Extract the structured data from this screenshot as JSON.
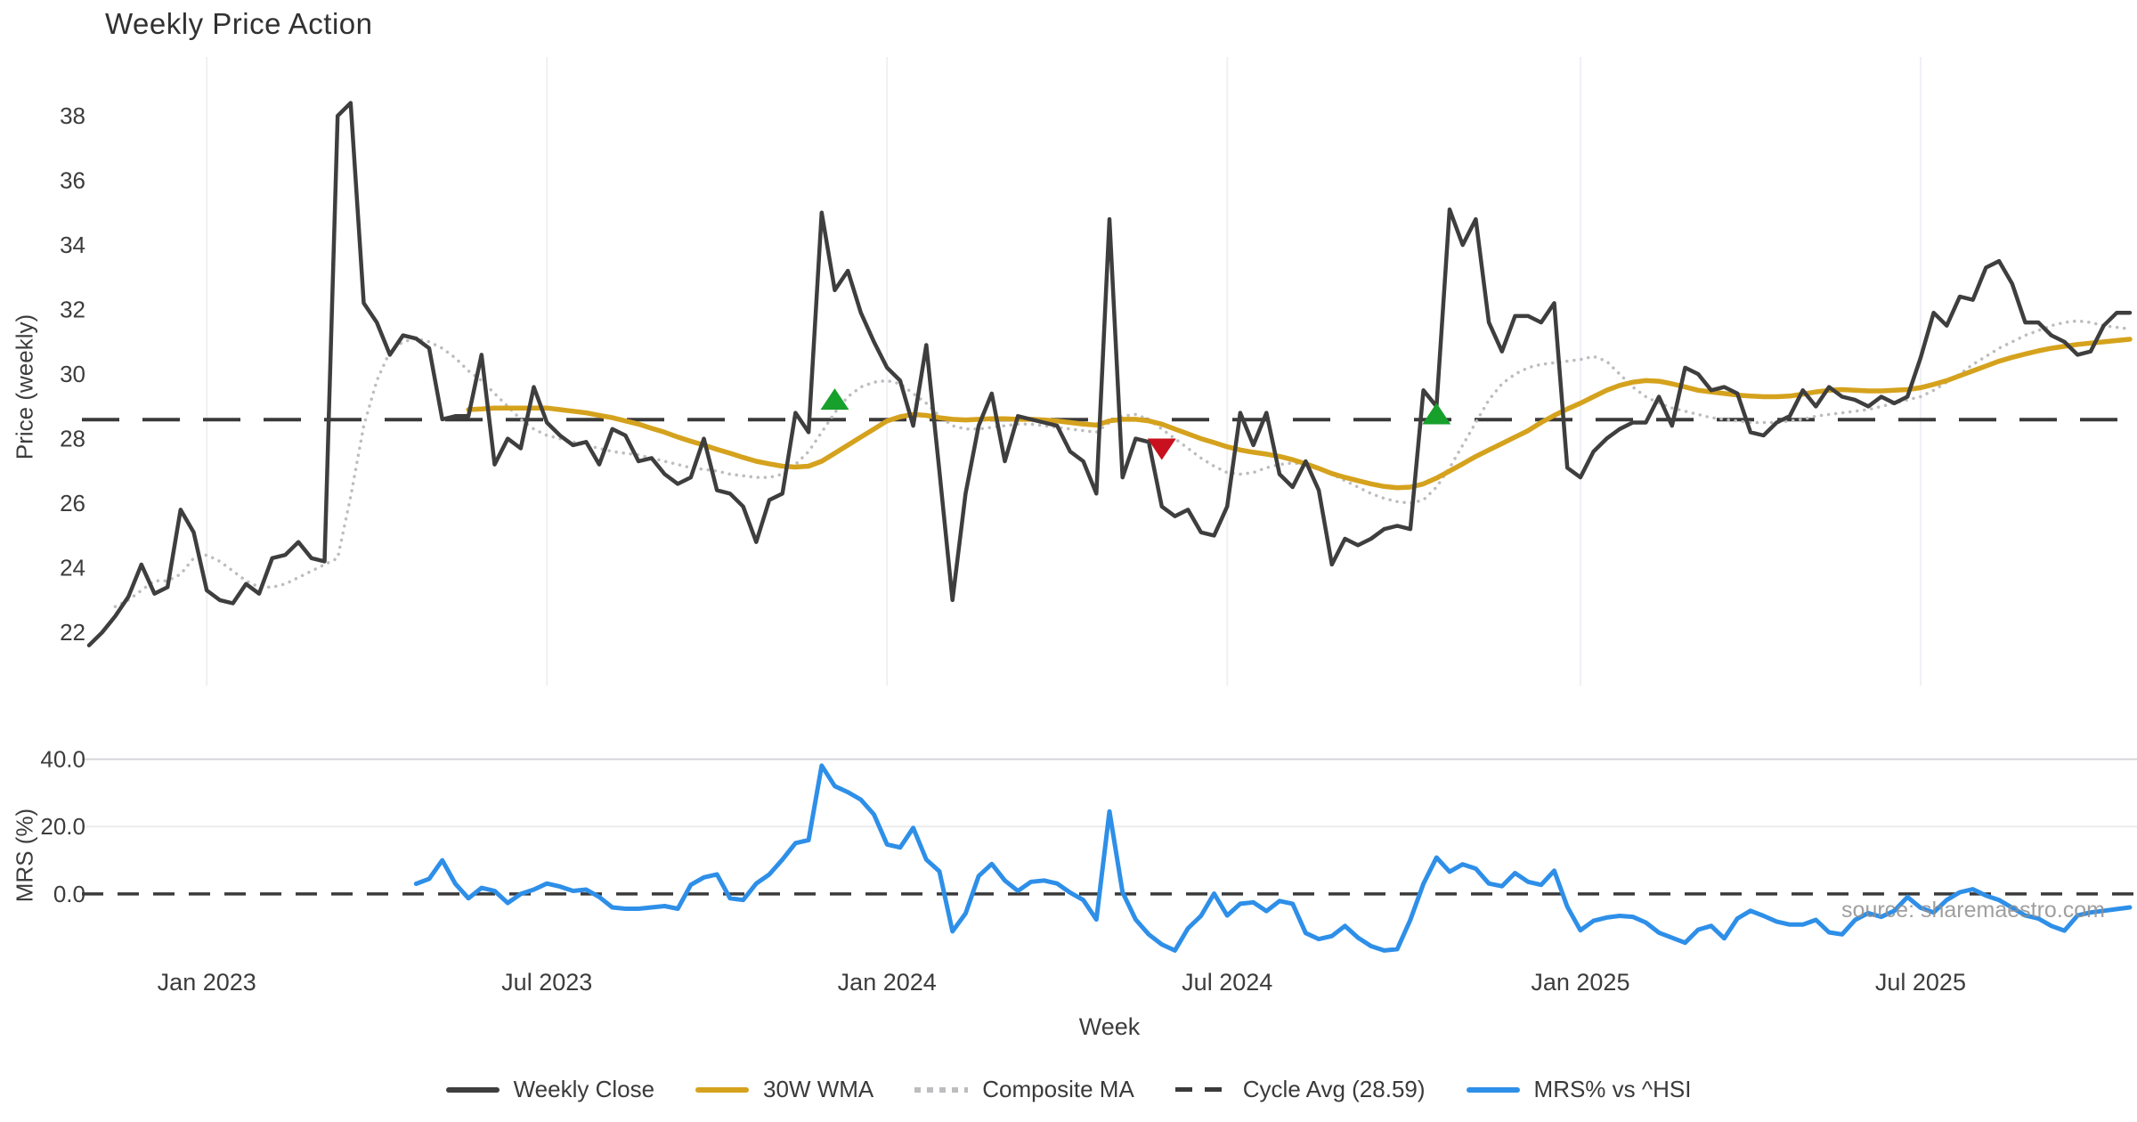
{
  "title": "Weekly Price Action",
  "source_note": "source: sharemaestro.com",
  "axes": {
    "price_label": "Price (weekly)",
    "mrs_label": "MRS (%)",
    "x_label": "Week"
  },
  "colors": {
    "close": "#3e3e3e",
    "wma": "#d5a21d",
    "composite": "#bdbdbf",
    "cycle": "#3a3a3a",
    "mrs": "#2e8fe8",
    "buy_marker": "#17a02c",
    "sell_marker": "#c8101e",
    "gridline": "#eef0f4",
    "grid40": "#d6d6da",
    "grid20": "#ececef"
  },
  "legend": [
    {
      "label": "Weekly Close",
      "swatch": "solid",
      "color": "#3e3e3e"
    },
    {
      "label": "30W WMA",
      "swatch": "solid",
      "color": "#d5a21d"
    },
    {
      "label": "Composite MA",
      "swatch": "dotted",
      "color": "#bdbdbf"
    },
    {
      "label": "Cycle Avg (28.59)",
      "swatch": "dashed",
      "color": "#3a3a3a"
    },
    {
      "label": "MRS% vs ^HSI",
      "swatch": "solid",
      "color": "#2e8fe8"
    }
  ],
  "chart_data": [
    {
      "type": "line",
      "panel": "price",
      "title": "Weekly Price Action",
      "ylabel": "Price (weekly)",
      "ylim": [
        20.35,
        39.05
      ],
      "yticks": [
        22,
        24,
        26,
        28,
        30,
        32,
        34,
        36,
        38
      ],
      "grid": "vertical-only",
      "x_weeks_total": 157,
      "x_ticks": [
        {
          "index": 9,
          "label": "Jan 2023"
        },
        {
          "index": 35,
          "label": "Jul 2023"
        },
        {
          "index": 61,
          "label": "Jan 2024"
        },
        {
          "index": 87,
          "label": "Jul 2024"
        },
        {
          "index": 114,
          "label": "Jan 2025"
        },
        {
          "index": 140,
          "label": "Jul 2025"
        }
      ],
      "cycle_avg": 28.59,
      "series": [
        {
          "name": "Weekly Close",
          "style": "solid",
          "color": "#3e3e3e",
          "start_index": 0,
          "values": [
            21.6,
            22.0,
            22.5,
            23.1,
            24.1,
            23.2,
            23.4,
            25.8,
            25.1,
            23.3,
            23.0,
            22.9,
            23.5,
            23.2,
            24.3,
            24.4,
            24.8,
            24.3,
            24.2,
            38.0,
            38.4,
            32.2,
            31.6,
            30.6,
            31.2,
            31.1,
            30.8,
            28.6,
            28.7,
            28.7,
            30.6,
            27.2,
            28.0,
            27.7,
            29.6,
            28.5,
            28.1,
            27.8,
            27.9,
            27.2,
            28.3,
            28.1,
            27.3,
            27.4,
            26.9,
            26.6,
            26.8,
            28.0,
            26.4,
            26.3,
            25.9,
            24.8,
            26.1,
            26.3,
            28.8,
            28.2,
            35.0,
            32.6,
            33.2,
            31.9,
            31.0,
            30.2,
            29.8,
            28.4,
            30.9,
            27.0,
            23.0,
            26.3,
            28.4,
            29.4,
            27.3,
            28.7,
            28.6,
            28.5,
            28.4,
            27.6,
            27.3,
            26.3,
            34.8,
            26.8,
            28.0,
            27.9,
            25.9,
            25.6,
            25.8,
            25.1,
            25.0,
            25.9,
            28.8,
            27.8,
            28.8,
            26.9,
            26.5,
            27.3,
            26.4,
            24.1,
            24.9,
            24.7,
            24.9,
            25.2,
            25.3,
            25.2,
            29.5,
            29.0,
            35.1,
            34.0,
            34.8,
            31.6,
            30.7,
            31.8,
            31.8,
            31.6,
            32.2,
            27.1,
            26.8,
            27.6,
            28.0,
            28.3,
            28.5,
            28.5,
            29.3,
            28.4,
            30.2,
            30.0,
            29.5,
            29.6,
            29.4,
            28.2,
            28.1,
            28.5,
            28.7,
            29.5,
            29.0,
            29.6,
            29.3,
            29.2,
            29.0,
            29.3,
            29.1,
            29.3,
            30.5,
            31.9,
            31.5,
            32.4,
            32.3,
            33.3,
            33.5,
            32.8,
            31.6,
            31.6,
            31.2,
            31.0,
            30.6,
            30.7,
            31.5,
            31.9,
            31.9
          ]
        },
        {
          "name": "30W WMA",
          "style": "solid",
          "color": "#d5a21d",
          "start_index": 29,
          "values": [
            28.9,
            28.92,
            28.95,
            28.95,
            28.95,
            28.95,
            28.95,
            28.9,
            28.85,
            28.8,
            28.72,
            28.65,
            28.55,
            28.45,
            28.32,
            28.2,
            28.05,
            27.92,
            27.8,
            27.67,
            27.55,
            27.42,
            27.3,
            27.22,
            27.15,
            27.12,
            27.15,
            27.3,
            27.55,
            27.8,
            28.05,
            28.3,
            28.55,
            28.68,
            28.75,
            28.72,
            28.65,
            28.6,
            28.58,
            28.6,
            28.62,
            28.62,
            28.6,
            28.6,
            28.58,
            28.55,
            28.5,
            28.45,
            28.42,
            28.55,
            28.6,
            28.6,
            28.55,
            28.45,
            28.3,
            28.15,
            28.0,
            27.88,
            27.75,
            27.65,
            27.58,
            27.52,
            27.45,
            27.35,
            27.22,
            27.08,
            26.92,
            26.8,
            26.7,
            26.6,
            26.52,
            26.48,
            26.5,
            26.6,
            26.78,
            27.0,
            27.22,
            27.45,
            27.65,
            27.85,
            28.05,
            28.25,
            28.5,
            28.72,
            28.92,
            29.1,
            29.3,
            29.5,
            29.65,
            29.75,
            29.8,
            29.78,
            29.7,
            29.6,
            29.5,
            29.45,
            29.4,
            29.35,
            29.32,
            29.3,
            29.3,
            29.32,
            29.38,
            29.45,
            29.5,
            29.52,
            29.5,
            29.48,
            29.48,
            29.5,
            29.52,
            29.58,
            29.68,
            29.8,
            29.95,
            30.1,
            30.25,
            30.4,
            30.52,
            30.62,
            30.72,
            30.8,
            30.86,
            30.92,
            30.96,
            31.0,
            31.04,
            31.08
          ]
        },
        {
          "name": "Composite MA",
          "style": "dotted",
          "color": "#bdbdbf",
          "start_index": 2,
          "values": [
            22.8,
            23.0,
            23.3,
            23.6,
            23.6,
            23.8,
            24.3,
            24.4,
            24.2,
            23.9,
            23.6,
            23.4,
            23.4,
            23.5,
            23.7,
            23.9,
            24.1,
            24.3,
            26.2,
            28.4,
            29.8,
            30.7,
            31.0,
            31.1,
            31.0,
            30.8,
            30.5,
            30.1,
            29.8,
            29.4,
            29.0,
            28.6,
            28.3,
            28.1,
            28.0,
            27.9,
            27.8,
            27.7,
            27.6,
            27.55,
            27.5,
            27.4,
            27.3,
            27.2,
            27.1,
            27.05,
            27.0,
            26.9,
            26.85,
            26.8,
            26.8,
            26.9,
            27.2,
            27.6,
            28.2,
            28.8,
            29.3,
            29.6,
            29.75,
            29.8,
            29.7,
            29.4,
            29.1,
            28.7,
            28.4,
            28.3,
            28.3,
            28.35,
            28.4,
            28.45,
            28.45,
            28.4,
            28.35,
            28.3,
            28.25,
            28.2,
            28.5,
            28.7,
            28.75,
            28.6,
            28.3,
            28.0,
            27.7,
            27.4,
            27.15,
            26.95,
            26.9,
            26.95,
            27.1,
            27.2,
            27.25,
            27.2,
            27.1,
            26.9,
            26.7,
            26.5,
            26.3,
            26.15,
            26.05,
            26.0,
            26.1,
            26.5,
            27.1,
            27.8,
            28.5,
            29.2,
            29.7,
            30.0,
            30.2,
            30.3,
            30.35,
            30.4,
            30.45,
            30.55,
            30.4,
            30.0,
            29.6,
            29.3,
            29.1,
            28.95,
            28.85,
            28.75,
            28.65,
            28.6,
            28.55,
            28.5,
            28.5,
            28.5,
            28.55,
            28.6,
            28.7,
            28.75,
            28.8,
            28.85,
            28.9,
            29.0,
            29.1,
            29.2,
            29.3,
            29.5,
            29.75,
            30.0,
            30.3,
            30.55,
            30.8,
            31.0,
            31.2,
            31.35,
            31.5,
            31.6,
            31.65,
            31.6,
            31.5,
            31.45,
            31.4
          ]
        },
        {
          "name": "Cycle Avg (28.59)",
          "style": "dashed",
          "color": "#3a3a3a",
          "value": 28.59
        }
      ],
      "markers": [
        {
          "type": "buy",
          "index": 57,
          "value": 29.2
        },
        {
          "type": "sell",
          "index": 82,
          "value": 27.7
        },
        {
          "type": "buy",
          "index": 103,
          "value": 28.75
        }
      ]
    },
    {
      "type": "line",
      "panel": "mrs",
      "ylabel": "MRS (%)",
      "xlabel": "Week",
      "ylim": [
        -18.8,
        42.0
      ],
      "yticks": [
        0,
        20,
        40
      ],
      "ytick_labels": [
        "0.0",
        "20.0",
        "40.0"
      ],
      "zero_line": 0,
      "grid": "horizontal-only",
      "series": [
        {
          "name": "MRS% vs ^HSI",
          "style": "solid",
          "color": "#2e8fe8",
          "start_index": 25,
          "values": [
            3.0,
            4.5,
            10.0,
            3.0,
            -1.3,
            1.8,
            0.9,
            -2.7,
            0.0,
            1.3,
            3.1,
            2.2,
            0.9,
            1.3,
            -0.9,
            -4.0,
            -4.4,
            -4.4,
            -4.0,
            -3.6,
            -4.4,
            2.7,
            4.9,
            5.8,
            -1.3,
            -1.8,
            3.1,
            5.8,
            10.2,
            15.1,
            16.0,
            38.1,
            32.0,
            30.2,
            28.0,
            23.6,
            14.7,
            13.8,
            19.6,
            10.2,
            6.7,
            -11.1,
            -5.8,
            5.3,
            8.9,
            4.0,
            0.9,
            3.6,
            4.0,
            3.1,
            0.4,
            -1.8,
            -7.6,
            24.5,
            0.5,
            -7.6,
            -12.0,
            -15.0,
            -16.8,
            -10.2,
            -6.5,
            0.1,
            -6.4,
            -2.9,
            -2.5,
            -5.1,
            -2.1,
            -2.9,
            -11.6,
            -13.4,
            -12.5,
            -9.5,
            -13.0,
            -15.5,
            -16.8,
            -16.4,
            -7.7,
            3.0,
            10.8,
            6.6,
            8.8,
            7.5,
            3.1,
            2.3,
            6.2,
            3.6,
            2.7,
            6.9,
            -3.8,
            -10.8,
            -8.0,
            -7.0,
            -6.5,
            -6.8,
            -8.5,
            -11.5,
            -13.0,
            -14.5,
            -10.6,
            -9.5,
            -13.2,
            -7.3,
            -5.0,
            -6.5,
            -8.2,
            -9.1,
            -9.1,
            -7.7,
            -11.4,
            -12.0,
            -7.7,
            -5.7,
            -6.8,
            -5.0,
            -0.9,
            -4.1,
            -5.5,
            -1.8,
            0.5,
            1.4,
            -0.5,
            -1.8,
            -4.1,
            -6.4,
            -7.3,
            -9.5,
            -10.9,
            -6.4,
            -5.5,
            -5.0,
            -4.5,
            -4.0
          ]
        }
      ]
    }
  ]
}
